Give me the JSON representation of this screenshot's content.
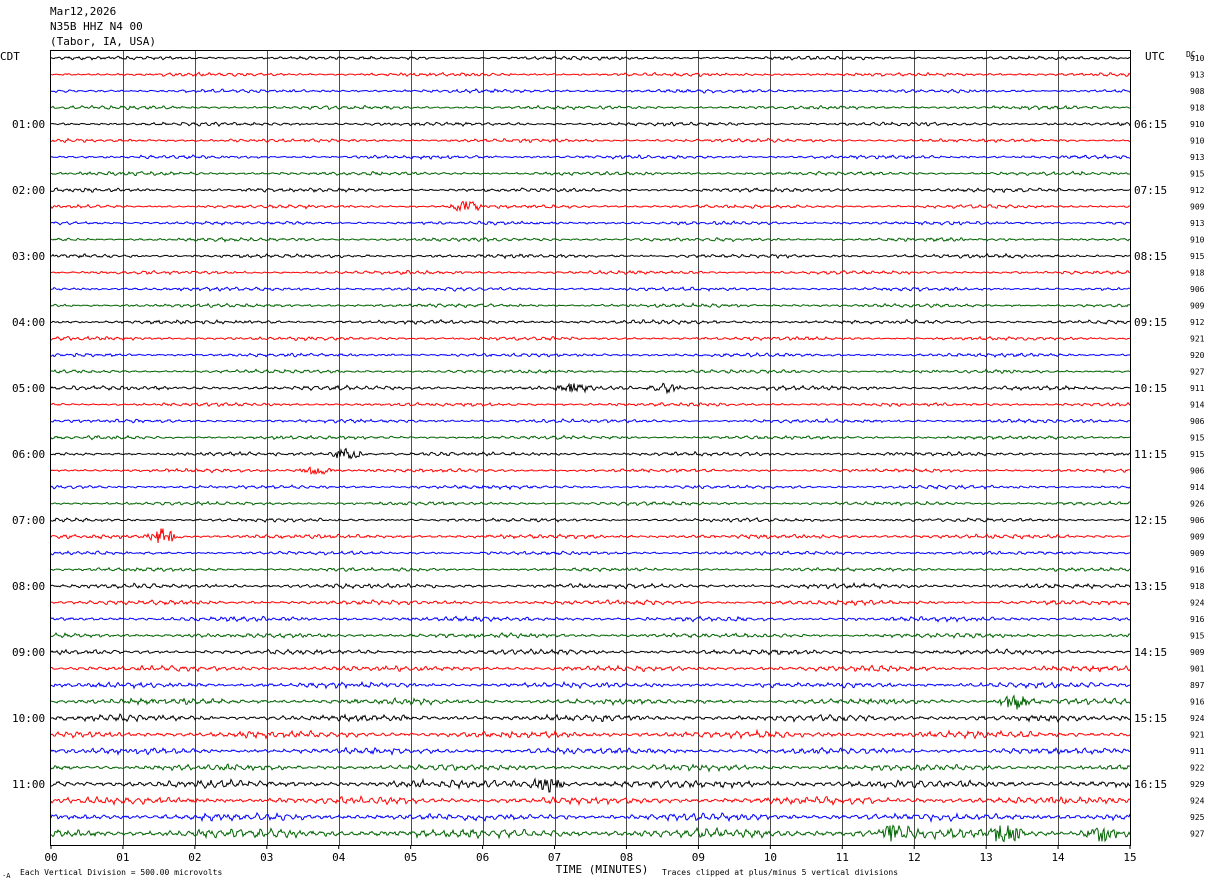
{
  "header": {
    "date": "Mar12,2026",
    "station": "N35B HHZ N4 00",
    "location": "(Tabor, IA, USA)"
  },
  "left_axis_label": "CDT",
  "right_axis_label": "UTC",
  "dc_label": "DC",
  "footer": {
    "scale_note": "Each Vertical Division =  500.00 microvolts",
    "x_axis_title": "TIME (MINUTES)",
    "clip_note": "Traces clipped at plus/minus 5 vertical divisions",
    "corner_mark": "·A"
  },
  "colors": {
    "trace_cycle": [
      "#000000",
      "#ff0000",
      "#0000ff",
      "#006400"
    ],
    "grid": "#000000",
    "background": "#ffffff"
  },
  "chart_data": {
    "type": "line",
    "title": "",
    "xlabel": "TIME (MINUTES)",
    "ylabel": "",
    "x_ticks": [
      "00",
      "01",
      "02",
      "03",
      "04",
      "05",
      "06",
      "07",
      "08",
      "09",
      "10",
      "11",
      "12",
      "13",
      "14",
      "15"
    ],
    "xlim": [
      0,
      15
    ],
    "trace_count": 48,
    "left_hour_labels": [
      {
        "trace": 4,
        "label": "01:00"
      },
      {
        "trace": 8,
        "label": "02:00"
      },
      {
        "trace": 12,
        "label": "03:00"
      },
      {
        "trace": 16,
        "label": "04:00"
      },
      {
        "trace": 20,
        "label": "05:00"
      },
      {
        "trace": 24,
        "label": "06:00"
      },
      {
        "trace": 28,
        "label": "07:00"
      },
      {
        "trace": 32,
        "label": "08:00"
      },
      {
        "trace": 36,
        "label": "09:00"
      },
      {
        "trace": 40,
        "label": "10:00"
      },
      {
        "trace": 44,
        "label": "11:00"
      }
    ],
    "right_hour_labels": [
      {
        "trace": 4,
        "label": "06:15"
      },
      {
        "trace": 8,
        "label": "07:15"
      },
      {
        "trace": 12,
        "label": "08:15"
      },
      {
        "trace": 16,
        "label": "09:15"
      },
      {
        "trace": 20,
        "label": "10:15"
      },
      {
        "trace": 24,
        "label": "11:15"
      },
      {
        "trace": 28,
        "label": "12:15"
      },
      {
        "trace": 32,
        "label": "13:15"
      },
      {
        "trace": 36,
        "label": "14:15"
      },
      {
        "trace": 40,
        "label": "15:15"
      },
      {
        "trace": 44,
        "label": "16:15"
      }
    ],
    "dc_offsets": [
      "910",
      "913",
      "908",
      "918",
      "910",
      "910",
      "913",
      "915",
      "912",
      "909",
      "913",
      "910",
      "915",
      "918",
      "906",
      "909",
      "912",
      "921",
      "920",
      "927",
      "911",
      "914",
      "906",
      "915",
      "915",
      "906",
      "914",
      "926",
      "906",
      "909",
      "909",
      "916",
      "918",
      "924",
      "916",
      "915",
      "909",
      "901",
      "897",
      "916",
      "924",
      "921",
      "911",
      "922",
      "929",
      "924",
      "925",
      "927"
    ],
    "trace_activity": [
      1,
      1,
      1,
      1,
      1,
      1,
      1,
      1,
      1.1,
      1,
      1,
      1,
      1.1,
      1,
      1,
      1,
      1.1,
      1,
      1,
      1,
      1.2,
      1,
      1,
      1,
      1.1,
      1,
      1,
      1,
      1,
      1.2,
      1,
      1,
      1.3,
      1.3,
      1.3,
      1.3,
      1.4,
      1.5,
      1.5,
      1.6,
      1.8,
      1.9,
      1.7,
      1.7,
      2.2,
      2.0,
      2.1,
      2.6
    ],
    "notable_events": [
      {
        "trace": 9,
        "minute": 5.77,
        "amplitude": 1.4
      },
      {
        "trace": 20,
        "minute": 7.3,
        "amplitude": 1.3
      },
      {
        "trace": 20,
        "minute": 8.55,
        "amplitude": 1.3
      },
      {
        "trace": 24,
        "minute": 4.12,
        "amplitude": 1.6
      },
      {
        "trace": 25,
        "minute": 3.7,
        "amplitude": 1.2
      },
      {
        "trace": 29,
        "minute": 1.55,
        "amplitude": 2.2
      },
      {
        "trace": 39,
        "minute": 13.4,
        "amplitude": 2.0
      },
      {
        "trace": 44,
        "minute": 6.9,
        "amplitude": 2.0
      },
      {
        "trace": 47,
        "minute": 11.7,
        "amplitude": 2.6
      },
      {
        "trace": 47,
        "minute": 13.3,
        "amplitude": 3.2
      },
      {
        "trace": 47,
        "minute": 14.6,
        "amplitude": 2.8
      }
    ]
  }
}
